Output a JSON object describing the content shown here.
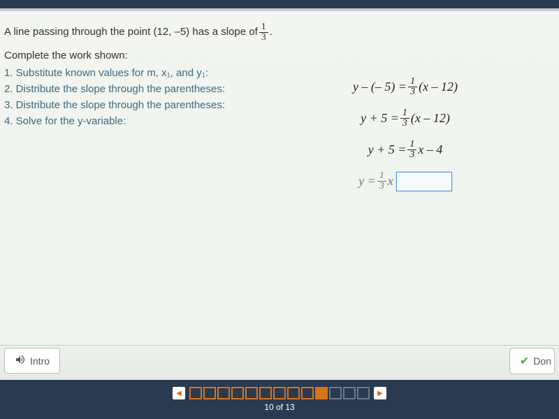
{
  "colors": {
    "header_bg": "#2a3a50",
    "content_bg": "#eef2ec",
    "step_text": "#3b6a82",
    "body_text": "#333333",
    "nav_orange": "#d9731a",
    "nav_dim": "#6a7a8a",
    "input_border": "#4a90d9"
  },
  "typography": {
    "body_family": "Arial",
    "body_size_pt": 11,
    "equation_family": "Times New Roman",
    "equation_style": "italic",
    "equation_size_pt": 14
  },
  "problem": {
    "prefix": "A line passing through the point (12, –5) has a slope of ",
    "slope_num": "1",
    "slope_den": "3",
    "suffix": "."
  },
  "subheading": "Complete the work shown:",
  "steps": [
    "1. Substitute known values for m, x₁, and y₁:",
    "2. Distribute the slope through the parentheses:",
    "3. Distribute the slope through the parentheses:",
    "4. Solve for the y-variable:"
  ],
  "equations": {
    "eq1": {
      "lhs": "y – (– 5) = ",
      "frac_num": "1",
      "frac_den": "3",
      "rhs": "(x – 12)"
    },
    "eq2": {
      "lhs": "y + 5 = ",
      "frac_num": "1",
      "frac_den": "3",
      "rhs": "(x – 12)"
    },
    "eq3": {
      "lhs": "y + 5 = ",
      "frac_num": "1",
      "frac_den": "3",
      "rhs": "x – 4"
    },
    "eq4": {
      "lhs": "y = ",
      "frac_num": "1",
      "frac_den": "3",
      "mid": "x"
    }
  },
  "buttons": {
    "intro": "Intro",
    "done": "Don"
  },
  "nav": {
    "total": 13,
    "current": 10,
    "label": "10 of 13",
    "squares": [
      {
        "state": "open"
      },
      {
        "state": "open"
      },
      {
        "state": "open"
      },
      {
        "state": "open"
      },
      {
        "state": "open"
      },
      {
        "state": "open"
      },
      {
        "state": "open"
      },
      {
        "state": "open"
      },
      {
        "state": "open"
      },
      {
        "state": "filled"
      },
      {
        "state": "dim"
      },
      {
        "state": "dim"
      },
      {
        "state": "dim"
      }
    ]
  }
}
